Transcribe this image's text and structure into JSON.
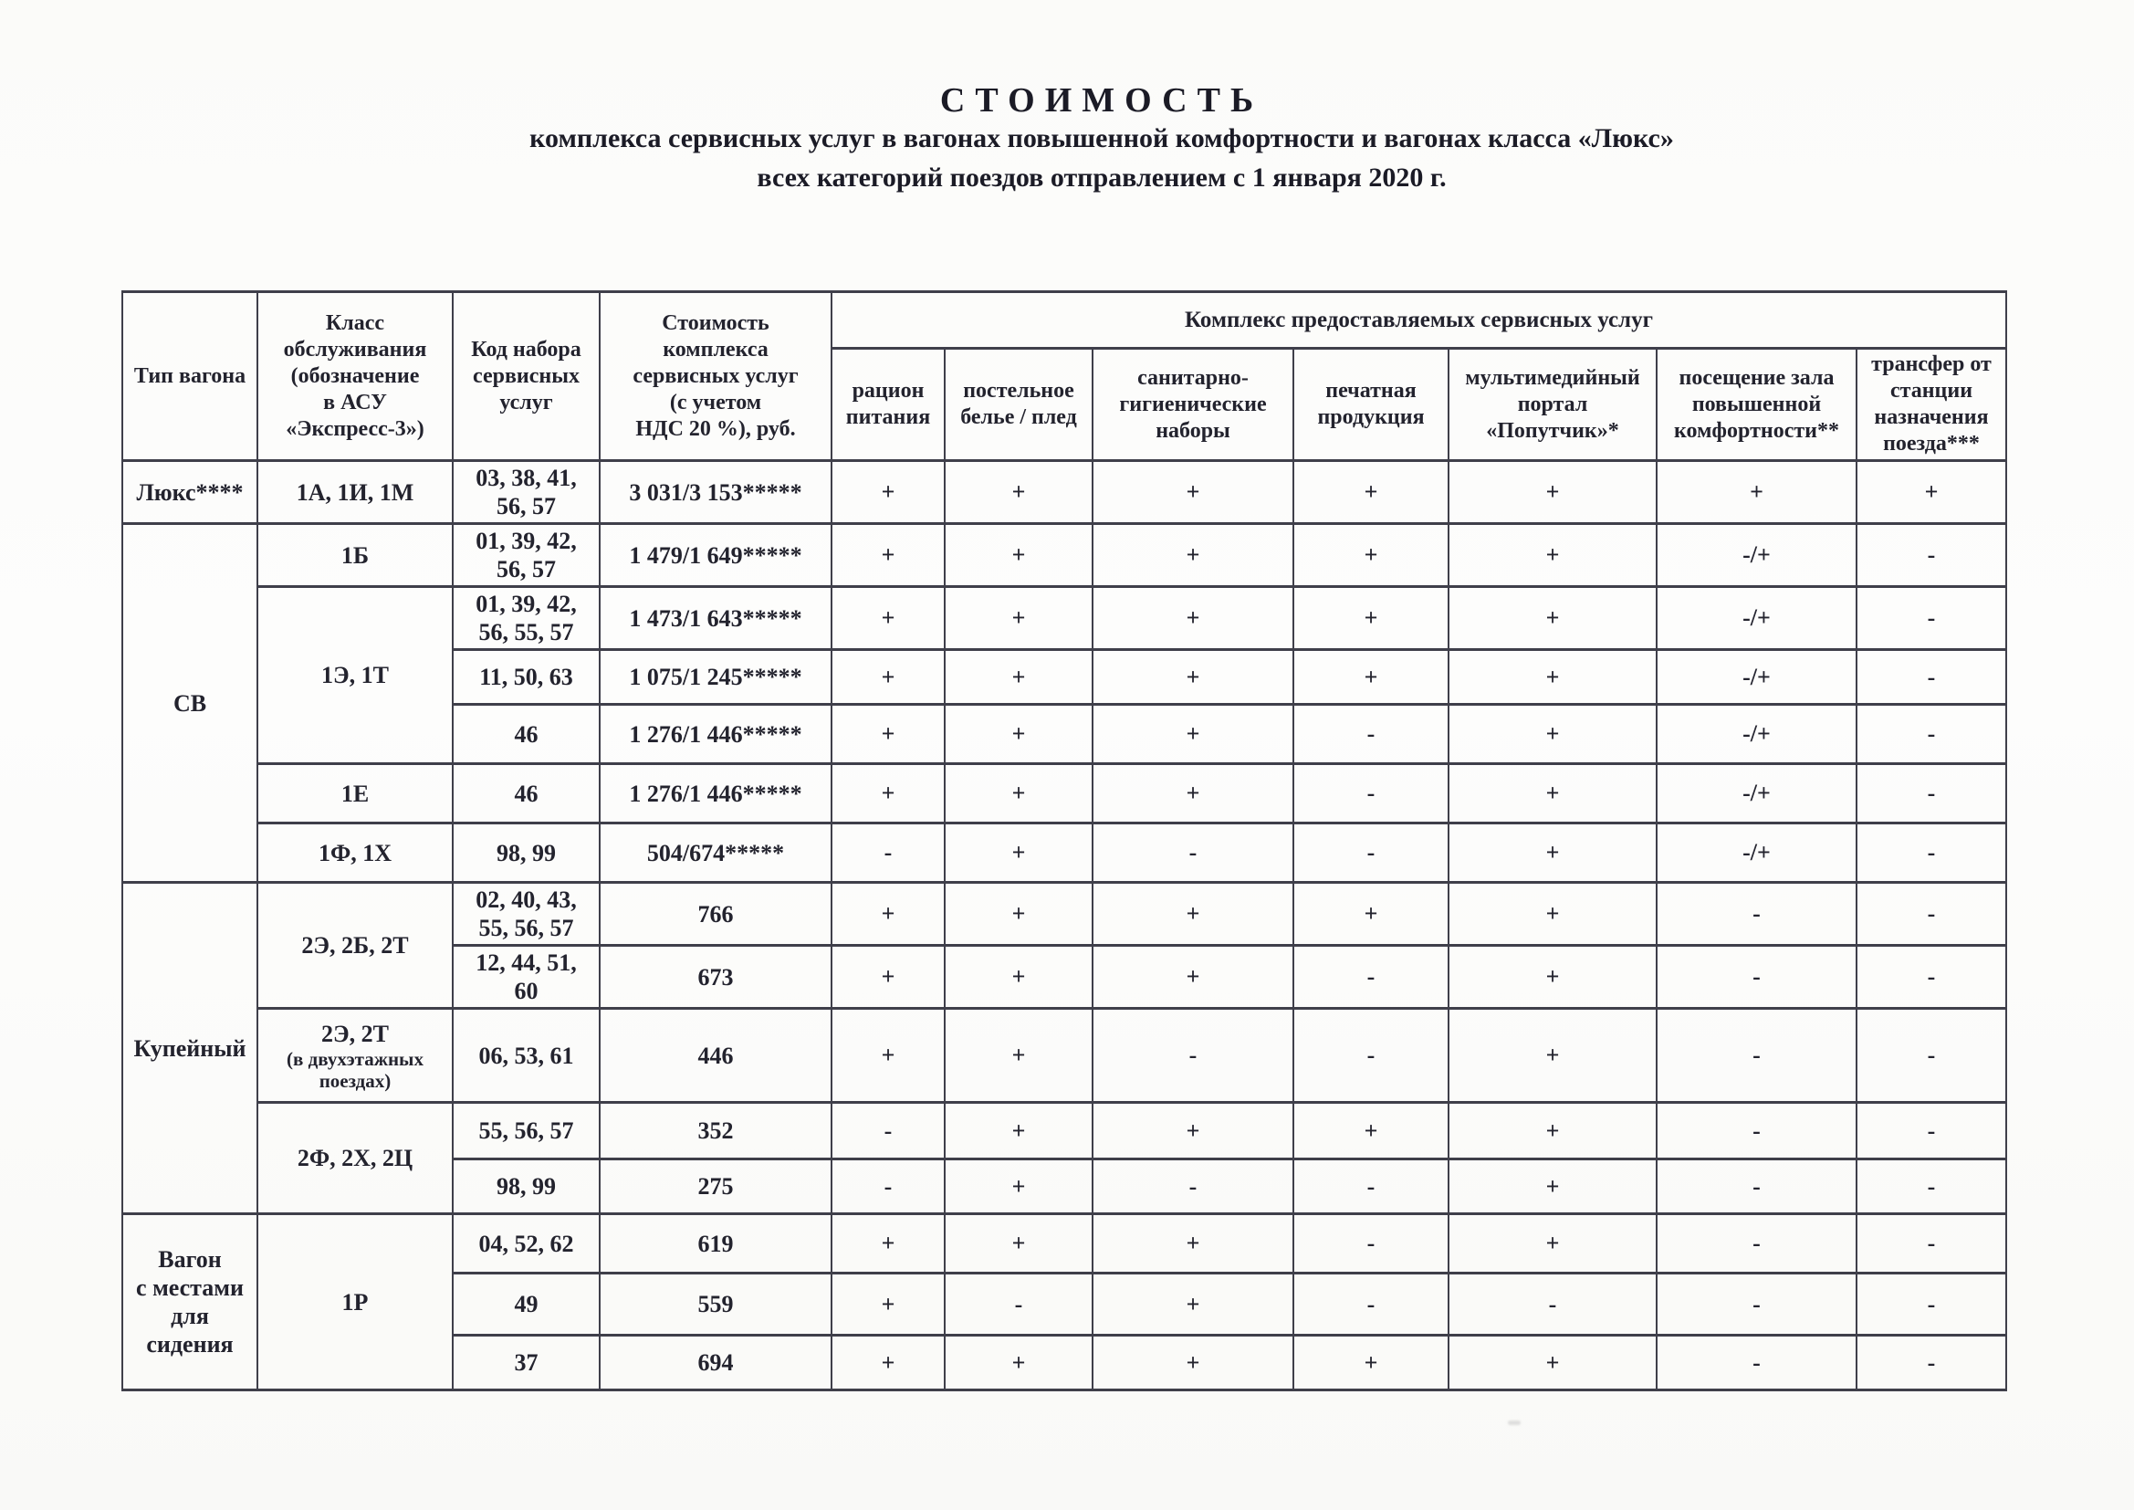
{
  "page": {
    "title": "СТОИМОСТЬ",
    "subtitle1": "комплекса сервисных услуг в вагонах повышенной комфортности и вагонах класса «Люкс»",
    "subtitle2": "всех категорий поездов отправлением с 1 января 2020 г."
  },
  "table": {
    "group_header": "Комплекс предоставляемых сервисных услуг",
    "col_headers": [
      "Тип вагона",
      "Класс\nобслуживания\n(обозначение\nв АСУ\n«Экспресс-3»)",
      "Код набора\nсервисных\nуслуг",
      "Стоимость\nкомплекса\nсервисных услуг\n(с учетом\nНДС 20 %), руб.",
      "рацион\nпитания",
      "постельное\nбелье / плед",
      "санитарно-\nгигиенические\nнаборы",
      "печатная\nпродукция",
      "мультимедийный\nпортал\n«Попутчик»*",
      "посещение зала\nповышенной\nкомфортности**",
      "трансфер от\nстанции\nназначения\nпоезда***"
    ],
    "rows": [
      {
        "cells": [
          {
            "t": "Люкс****"
          },
          {
            "t": "1А, 1И, 1М"
          },
          {
            "t": "03, 38, 41,\n56, 57"
          },
          {
            "t": "3 031/3 153*****"
          },
          {
            "t": "+"
          },
          {
            "t": "+"
          },
          {
            "t": "+"
          },
          {
            "t": "+"
          },
          {
            "t": "+"
          },
          {
            "t": "+"
          },
          {
            "t": "+"
          }
        ]
      },
      {
        "cells": [
          {
            "t": "СВ",
            "rs": 6
          },
          {
            "t": "1Б"
          },
          {
            "t": "01, 39, 42,\n56, 57"
          },
          {
            "t": "1 479/1 649*****"
          },
          {
            "t": "+"
          },
          {
            "t": "+"
          },
          {
            "t": "+"
          },
          {
            "t": "+"
          },
          {
            "t": "+"
          },
          {
            "t": "-/+"
          },
          {
            "t": "-"
          }
        ]
      },
      {
        "cells": [
          {
            "t": "1Э, 1Т",
            "rs": 3
          },
          {
            "t": "01, 39, 42,\n56, 55, 57"
          },
          {
            "t": "1 473/1 643*****"
          },
          {
            "t": "+"
          },
          {
            "t": "+"
          },
          {
            "t": "+"
          },
          {
            "t": "+"
          },
          {
            "t": "+"
          },
          {
            "t": "-/+"
          },
          {
            "t": "-"
          }
        ]
      },
      {
        "cells": [
          {
            "t": "11, 50, 63"
          },
          {
            "t": "1 075/1 245*****"
          },
          {
            "t": "+"
          },
          {
            "t": "+"
          },
          {
            "t": "+"
          },
          {
            "t": "+"
          },
          {
            "t": "+"
          },
          {
            "t": "-/+"
          },
          {
            "t": "-"
          }
        ]
      },
      {
        "cells": [
          {
            "t": "46"
          },
          {
            "t": "1 276/1 446*****"
          },
          {
            "t": "+"
          },
          {
            "t": "+"
          },
          {
            "t": "+"
          },
          {
            "t": "-"
          },
          {
            "t": "+"
          },
          {
            "t": "-/+"
          },
          {
            "t": "-"
          }
        ]
      },
      {
        "cells": [
          {
            "t": "1Е"
          },
          {
            "t": "46"
          },
          {
            "t": "1 276/1 446*****"
          },
          {
            "t": "+"
          },
          {
            "t": "+"
          },
          {
            "t": "+"
          },
          {
            "t": "-"
          },
          {
            "t": "+"
          },
          {
            "t": "-/+"
          },
          {
            "t": "-"
          }
        ]
      },
      {
        "cells": [
          {
            "t": "1Ф, 1Х"
          },
          {
            "t": "98, 99"
          },
          {
            "t": "504/674*****"
          },
          {
            "t": "-"
          },
          {
            "t": "+"
          },
          {
            "t": "-"
          },
          {
            "t": "-"
          },
          {
            "t": "+"
          },
          {
            "t": "-/+"
          },
          {
            "t": "-"
          }
        ]
      },
      {
        "cells": [
          {
            "t": "Купейный",
            "rs": 5
          },
          {
            "t": "2Э, 2Б, 2Т",
            "rs": 2
          },
          {
            "t": "02, 40, 43,\n55, 56, 57"
          },
          {
            "t": "766"
          },
          {
            "t": "+"
          },
          {
            "t": "+"
          },
          {
            "t": "+"
          },
          {
            "t": "+"
          },
          {
            "t": "+"
          },
          {
            "t": "-"
          },
          {
            "t": "-"
          }
        ]
      },
      {
        "cells": [
          {
            "t": "12, 44, 51,\n60"
          },
          {
            "t": "673"
          },
          {
            "t": "+"
          },
          {
            "t": "+"
          },
          {
            "t": "+"
          },
          {
            "t": "-"
          },
          {
            "t": "+"
          },
          {
            "t": "-"
          },
          {
            "t": "-"
          }
        ]
      },
      {
        "cells": [
          {
            "t": "2Э, 2Т",
            "sub": "(в двухэтажных\nпоездах)"
          },
          {
            "t": "06, 53, 61"
          },
          {
            "t": "446"
          },
          {
            "t": "+"
          },
          {
            "t": "+"
          },
          {
            "t": "-"
          },
          {
            "t": "-"
          },
          {
            "t": "+"
          },
          {
            "t": "-"
          },
          {
            "t": "-"
          }
        ]
      },
      {
        "cells": [
          {
            "t": "2Ф, 2Х, 2Ц",
            "rs": 2
          },
          {
            "t": "55, 56, 57"
          },
          {
            "t": "352"
          },
          {
            "t": "-"
          },
          {
            "t": "+"
          },
          {
            "t": "+"
          },
          {
            "t": "+"
          },
          {
            "t": "+"
          },
          {
            "t": "-"
          },
          {
            "t": "-"
          }
        ]
      },
      {
        "cells": [
          {
            "t": "98, 99"
          },
          {
            "t": "275"
          },
          {
            "t": "-"
          },
          {
            "t": "+"
          },
          {
            "t": "-"
          },
          {
            "t": "-"
          },
          {
            "t": "+"
          },
          {
            "t": "-"
          },
          {
            "t": "-"
          }
        ]
      },
      {
        "cells": [
          {
            "t": "Вагон\nс местами\nдля\nсидения",
            "rs": 3
          },
          {
            "t": "1Р",
            "rs": 3
          },
          {
            "t": "04, 52, 62"
          },
          {
            "t": "619"
          },
          {
            "t": "+"
          },
          {
            "t": "+"
          },
          {
            "t": "+"
          },
          {
            "t": "-"
          },
          {
            "t": "+"
          },
          {
            "t": "-"
          },
          {
            "t": "-"
          }
        ]
      },
      {
        "cells": [
          {
            "t": "49"
          },
          {
            "t": "559"
          },
          {
            "t": "+"
          },
          {
            "t": "-"
          },
          {
            "t": "+"
          },
          {
            "t": "-"
          },
          {
            "t": "-"
          },
          {
            "t": "-"
          },
          {
            "t": "-"
          }
        ]
      },
      {
        "cells": [
          {
            "t": "37"
          },
          {
            "t": "694"
          },
          {
            "t": "+"
          },
          {
            "t": "+"
          },
          {
            "t": "+"
          },
          {
            "t": "+"
          },
          {
            "t": "+"
          },
          {
            "t": "-"
          },
          {
            "t": "-"
          }
        ]
      }
    ]
  }
}
